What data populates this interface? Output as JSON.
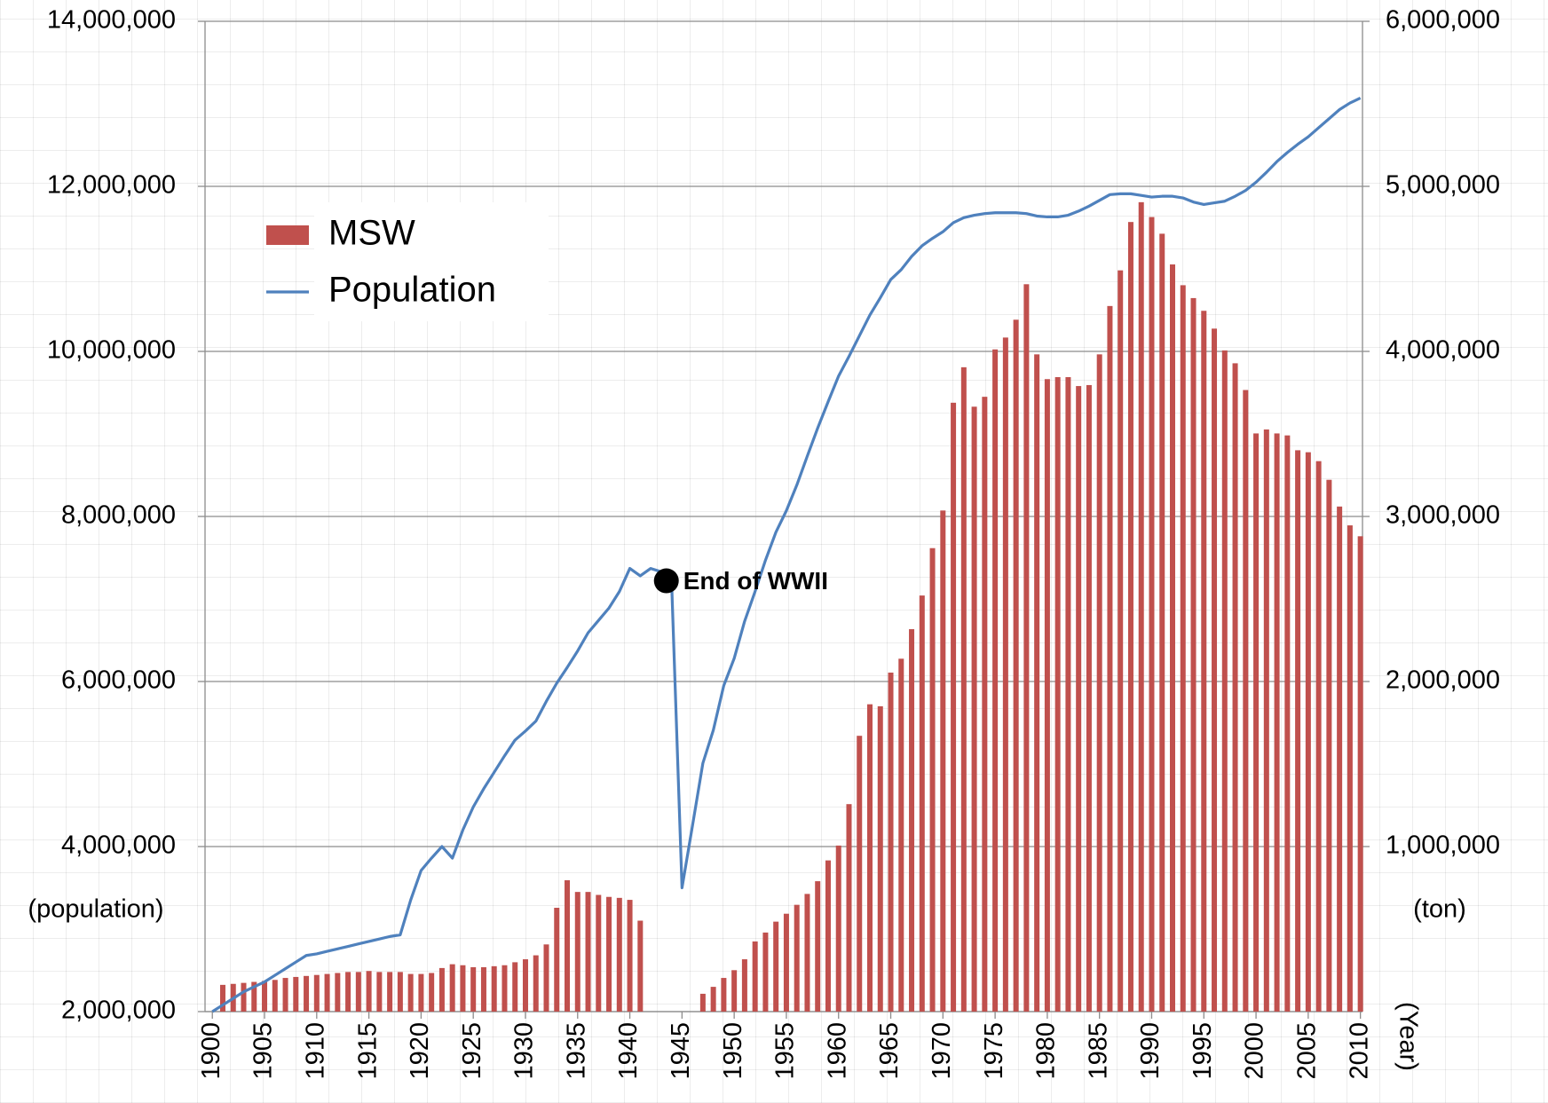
{
  "chart_data": {
    "type": "bar_line",
    "x": [
      1900,
      1901,
      1902,
      1903,
      1904,
      1905,
      1906,
      1907,
      1908,
      1909,
      1910,
      1911,
      1912,
      1913,
      1914,
      1915,
      1916,
      1917,
      1918,
      1919,
      1920,
      1921,
      1922,
      1923,
      1924,
      1925,
      1926,
      1927,
      1928,
      1929,
      1930,
      1931,
      1932,
      1933,
      1934,
      1935,
      1936,
      1937,
      1938,
      1939,
      1940,
      1941,
      1942,
      1943,
      1944,
      1945,
      1946,
      1947,
      1948,
      1949,
      1950,
      1951,
      1952,
      1953,
      1954,
      1955,
      1956,
      1957,
      1958,
      1959,
      1960,
      1961,
      1962,
      1963,
      1964,
      1965,
      1966,
      1967,
      1968,
      1969,
      1970,
      1971,
      1972,
      1973,
      1974,
      1975,
      1976,
      1977,
      1978,
      1979,
      1980,
      1981,
      1982,
      1983,
      1984,
      1985,
      1986,
      1987,
      1988,
      1989,
      1990,
      1991,
      1992,
      1993,
      1994,
      1995,
      1996,
      1997,
      1998,
      1999,
      2000,
      2001,
      2002,
      2003,
      2004,
      2005,
      2006,
      2007,
      2008,
      2009,
      2010
    ],
    "series": [
      {
        "name": "MSW",
        "type": "bar",
        "axis": "y2",
        "color": "#c0504d",
        "values": [
          null,
          162000,
          168000,
          174000,
          180000,
          186000,
          192000,
          204000,
          210000,
          216000,
          222000,
          228000,
          234000,
          240000,
          240000,
          246000,
          240000,
          240000,
          240000,
          228000,
          228000,
          234000,
          264000,
          287000,
          281000,
          269000,
          269000,
          275000,
          281000,
          299000,
          317000,
          341000,
          407000,
          629000,
          796000,
          725000,
          725000,
          707000,
          695000,
          689000,
          677000,
          551000,
          null,
          null,
          null,
          null,
          null,
          108000,
          150000,
          204000,
          251000,
          317000,
          425000,
          479000,
          545000,
          593000,
          647000,
          713000,
          790000,
          916000,
          1006000,
          1257000,
          1671000,
          1862000,
          1850000,
          2054000,
          2138000,
          2317000,
          2521000,
          2808000,
          3036000,
          3689000,
          3904000,
          3665000,
          3725000,
          4012000,
          4084000,
          4192000,
          4407000,
          3982000,
          3832000,
          3844000,
          3844000,
          3790000,
          3796000,
          3982000,
          4275000,
          4491000,
          4784000,
          4904000,
          4814000,
          4713000,
          4527000,
          4401000,
          4323000,
          4246000,
          4138000,
          4006000,
          3928000,
          3766000,
          3503000,
          3527000,
          3503000,
          3491000,
          3401000,
          3389000,
          3335000,
          3222000,
          3060000,
          2946000,
          2880000
        ]
      },
      {
        "name": "Population",
        "type": "line",
        "axis": "y",
        "color": "#4f81bd",
        "values": [
          2000000,
          2080000,
          2160000,
          2240000,
          2300000,
          2360000,
          2440000,
          2520000,
          2600000,
          2680000,
          2700000,
          2730000,
          2760000,
          2790000,
          2820000,
          2850000,
          2880000,
          2910000,
          2930000,
          3350000,
          3710000,
          3860000,
          4000000,
          3860000,
          4200000,
          4480000,
          4700000,
          4900000,
          5100000,
          5290000,
          5400000,
          5520000,
          5760000,
          5980000,
          6170000,
          6370000,
          6590000,
          6740000,
          6890000,
          7090000,
          7370000,
          7280000,
          7370000,
          7330000,
          7220000,
          3500000,
          4250000,
          5010000,
          5410000,
          5950000,
          6280000,
          6730000,
          7090000,
          7470000,
          7810000,
          8070000,
          8380000,
          8730000,
          9070000,
          9390000,
          9700000,
          9940000,
          10190000,
          10440000,
          10650000,
          10870000,
          10990000,
          11150000,
          11280000,
          11370000,
          11450000,
          11560000,
          11620000,
          11650000,
          11670000,
          11680000,
          11680000,
          11680000,
          11670000,
          11640000,
          11630000,
          11630000,
          11650000,
          11700000,
          11760000,
          11830000,
          11900000,
          11910000,
          11910000,
          11890000,
          11870000,
          11880000,
          11880000,
          11860000,
          11810000,
          11780000,
          11800000,
          11820000,
          11880000,
          11950000,
          12050000,
          12170000,
          12300000,
          12410000,
          12510000,
          12600000,
          12710000,
          12820000,
          12930000,
          13010000,
          13070000
        ]
      }
    ],
    "ylabel": "(population)",
    "y2label": "(ton)",
    "xlabel": "(Year)",
    "xlim": [
      1899.3,
      2010.2
    ],
    "xticks": [
      1900,
      1905,
      1910,
      1915,
      1920,
      1925,
      1930,
      1935,
      1940,
      1945,
      1950,
      1955,
      1960,
      1965,
      1970,
      1975,
      1980,
      1985,
      1990,
      1995,
      2000,
      2005,
      2010
    ],
    "ylim": [
      2000000,
      14000000
    ],
    "yticks": [
      {
        "value": 2000000,
        "label": "2,000,000"
      },
      {
        "value": 4000000,
        "label": "4,000,000"
      },
      {
        "value": 6000000,
        "label": "6,000,000"
      },
      {
        "value": 8000000,
        "label": "8,000,000"
      },
      {
        "value": 10000000,
        "label": "10,000,000"
      },
      {
        "value": 12000000,
        "label": "12,000,000"
      },
      {
        "value": 14000000,
        "label": "14,000,000"
      }
    ],
    "y2lim": [
      0,
      6000000
    ],
    "y2ticks": [
      {
        "value": 1000000,
        "label": "1,000,000"
      },
      {
        "value": 2000000,
        "label": "2,000,000"
      },
      {
        "value": 3000000,
        "label": "3,000,000"
      },
      {
        "value": 4000000,
        "label": "4,000,000"
      },
      {
        "value": 5000000,
        "label": "5,000,000"
      },
      {
        "value": 6000000,
        "label": "6,000,000"
      }
    ],
    "grid": true,
    "legend": "upper left",
    "annotation": {
      "text": "End of WWII",
      "x": 1943.5,
      "y": 7220000
    }
  }
}
